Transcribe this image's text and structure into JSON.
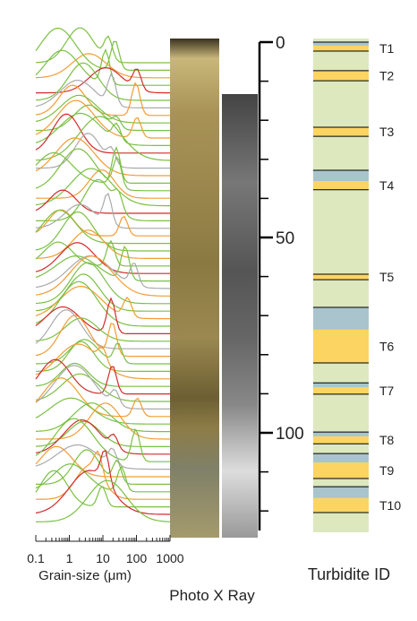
{
  "grain_size": {
    "label": "Grain-size (μm)",
    "xlim": [
      0.1,
      1000
    ],
    "xticks": [
      0.1,
      1,
      10,
      100,
      1000
    ],
    "log_scale": true
  },
  "core_labels": {
    "photo_xray": "Photo X Ray"
  },
  "depth_axis": {
    "ylim": [
      0,
      125
    ],
    "yticks": [
      0,
      50,
      100
    ],
    "minor_step": 10
  },
  "turbidite_column": {
    "title": "Turbidite ID",
    "background": "#dde8bf",
    "sand_color": "#fcd462",
    "mud_color": "#a9c4cc",
    "turbidites": [
      {
        "label": "T1",
        "mud": [
          0,
          0.9
        ],
        "sand": [
          0.9,
          2.3
        ]
      },
      {
        "label": "T2",
        "mud": null,
        "sand": [
          7.3,
          9.9
        ]
      },
      {
        "label": "T3",
        "mud": null,
        "sand": [
          21.8,
          24.1
        ]
      },
      {
        "label": "T4",
        "mud": [
          32.8,
          35.6
        ],
        "sand": [
          35.6,
          37.8
        ]
      },
      {
        "label": "T5",
        "mud": null,
        "sand": [
          59.4,
          60.8
        ]
      },
      {
        "label": "T6",
        "mud": [
          67.9,
          73.6
        ],
        "sand": [
          73.6,
          82.1
        ]
      },
      {
        "label": "T7",
        "mud": [
          87.2,
          88.3
        ],
        "sand": [
          88.3,
          90.1
        ]
      },
      {
        "label": "T8",
        "mud": [
          99.8,
          100.9
        ],
        "sand": [
          100.9,
          102.8
        ]
      },
      {
        "label": "T9",
        "mud": [
          105.3,
          107.6
        ],
        "sand": [
          107.6,
          111.7
        ]
      },
      {
        "label": "T10",
        "mud": [
          113.8,
          116.7
        ],
        "sand": [
          116.7,
          120.4
        ]
      }
    ]
  }
}
